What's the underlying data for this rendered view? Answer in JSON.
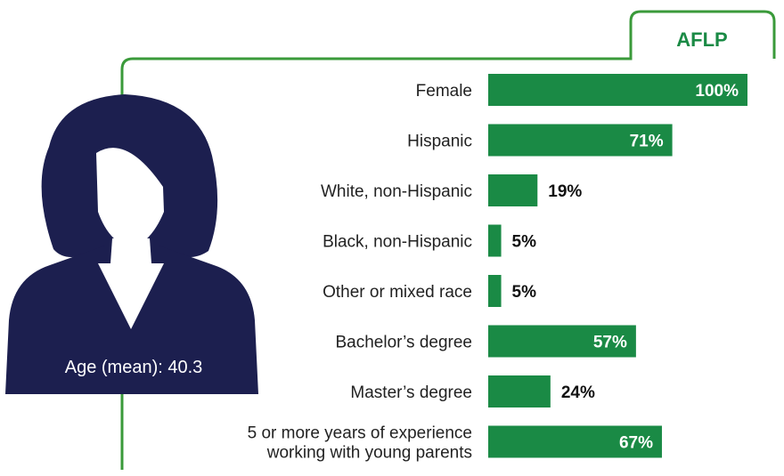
{
  "tab_label": "AFLP",
  "age_label": "Age (mean): 40.3",
  "colors": {
    "bar": "#1a8a45",
    "border": "#3a9a3a",
    "figure": "#1c1f4f"
  },
  "chart_data": {
    "type": "bar",
    "orientation": "horizontal",
    "categories": [
      "Female",
      "Hispanic",
      "White, non-Hispanic",
      "Black, non-Hispanic",
      "Other or mixed race",
      "Bachelor’s degree",
      "Master’s degree",
      "5 or more years of experience working with young parents"
    ],
    "category_lines": [
      [
        "Female"
      ],
      [
        "Hispanic"
      ],
      [
        "White, non-Hispanic"
      ],
      [
        "Black, non-Hispanic"
      ],
      [
        "Other or mixed race"
      ],
      [
        "Bachelor’s degree"
      ],
      [
        "Master’s degree"
      ],
      [
        "5 or more years of experience",
        "working with young parents"
      ]
    ],
    "values": [
      100,
      71,
      19,
      5,
      5,
      57,
      24,
      67
    ],
    "value_labels": [
      "100%",
      "71%",
      "19%",
      "5%",
      "5%",
      "57%",
      "24%",
      "67%"
    ],
    "xlim": [
      0,
      100
    ],
    "unit": "%"
  }
}
